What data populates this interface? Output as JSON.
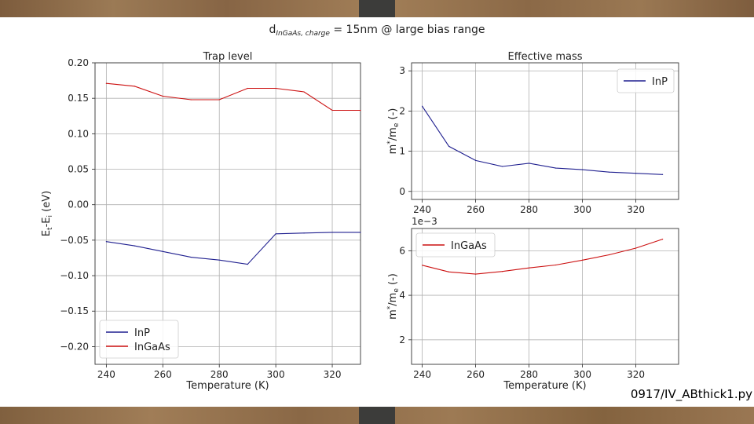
{
  "figure": {
    "title_prefix": "d",
    "title_subscript": "InGaAs, charge",
    "title_suffix": " = 15nm @ large bias range",
    "footer": "0917/IV_ABthick1.py"
  },
  "colors": {
    "inp": "#1f1f8f",
    "ingaas": "#cc1010",
    "grid": "#b0b0b0"
  },
  "chart_data": [
    {
      "id": "trap",
      "type": "line",
      "title": "Trap level",
      "xlabel": "Temperature (K)",
      "ylabel": "E_t-E_i (eV)",
      "xlim": [
        236,
        330
      ],
      "ylim": [
        -0.225,
        0.2
      ],
      "xticks": [
        240,
        260,
        280,
        300,
        320
      ],
      "yticks": [
        -0.2,
        -0.15,
        -0.1,
        -0.05,
        0.0,
        0.05,
        0.1,
        0.15,
        0.2
      ],
      "ytick_labels": [
        "−0.20",
        "−0.15",
        "−0.10",
        "−0.05",
        "0.00",
        "0.05",
        "0.10",
        "0.15",
        "0.20"
      ],
      "xtick_labels": [
        "240",
        "260",
        "280",
        "300",
        "320"
      ],
      "legend": {
        "position": "lower-left",
        "entries": [
          "InP",
          "InGaAs"
        ]
      },
      "series": [
        {
          "name": "InP",
          "color": "#1f1f8f",
          "x": [
            240,
            250,
            260,
            270,
            280,
            290,
            300,
            310,
            320,
            330
          ],
          "y": [
            -0.052,
            -0.058,
            -0.066,
            -0.074,
            -0.078,
            -0.084,
            -0.041,
            -0.04,
            -0.039,
            -0.039
          ]
        },
        {
          "name": "InGaAs",
          "color": "#cc1010",
          "x": [
            240,
            250,
            260,
            270,
            280,
            290,
            300,
            310,
            320,
            330
          ],
          "y": [
            0.171,
            0.167,
            0.153,
            0.148,
            0.148,
            0.164,
            0.164,
            0.159,
            0.133,
            0.133
          ]
        }
      ]
    },
    {
      "id": "mass_inp",
      "type": "line",
      "title": "Effective mass",
      "xlabel": "",
      "ylabel": "m*/m_e (-)",
      "xlim": [
        236,
        336
      ],
      "ylim": [
        -0.2,
        3.2
      ],
      "xticks": [
        240,
        260,
        280,
        300,
        320
      ],
      "yticks": [
        0,
        1,
        2,
        3
      ],
      "xtick_labels": [
        "240",
        "260",
        "280",
        "300",
        "320"
      ],
      "ytick_labels": [
        "0",
        "1",
        "2",
        "3"
      ],
      "legend": {
        "position": "top-right",
        "entries": [
          "InP"
        ]
      },
      "series": [
        {
          "name": "InP",
          "color": "#1f1f8f",
          "x": [
            240,
            250,
            260,
            270,
            280,
            290,
            300,
            310,
            320,
            330
          ],
          "y": [
            2.12,
            1.12,
            0.77,
            0.62,
            0.7,
            0.58,
            0.54,
            0.48,
            0.45,
            0.42
          ]
        }
      ]
    },
    {
      "id": "mass_ingaas",
      "type": "line",
      "title": "",
      "xlabel": "Temperature (K)",
      "ylabel": "m*/m_e (-)",
      "offset_text": "1e−3",
      "xlim": [
        236,
        336
      ],
      "ylim": [
        0.9,
        7.0
      ],
      "xticks": [
        240,
        260,
        280,
        300,
        320
      ],
      "yticks": [
        2,
        4,
        6
      ],
      "xtick_labels": [
        "240",
        "260",
        "280",
        "300",
        "320"
      ],
      "ytick_labels": [
        "2",
        "4",
        "6"
      ],
      "legend": {
        "position": "top-left",
        "entries": [
          "InGaAs"
        ]
      },
      "series": [
        {
          "name": "InGaAs",
          "color": "#cc1010",
          "x": [
            240,
            250,
            260,
            270,
            280,
            290,
            300,
            310,
            320,
            330
          ],
          "y": [
            5.35,
            5.05,
            4.95,
            5.07,
            5.23,
            5.36,
            5.58,
            5.82,
            6.12,
            6.52
          ]
        }
      ]
    }
  ]
}
